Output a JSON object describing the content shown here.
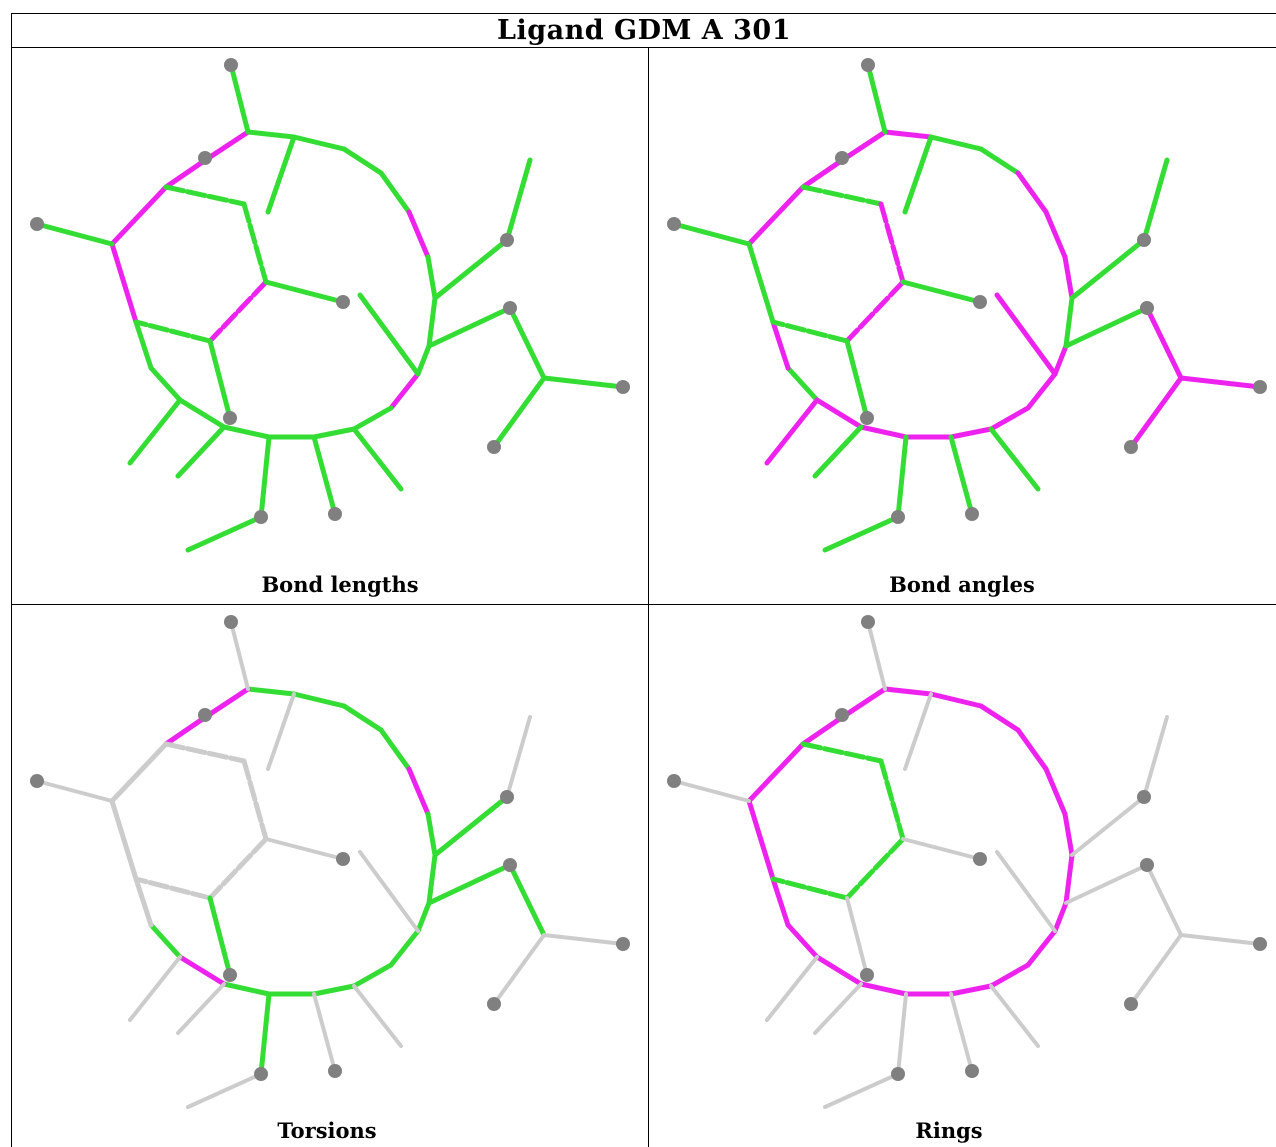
{
  "table": {
    "title": "Ligand GDM A 301",
    "panels": [
      {
        "id": "bond-lengths",
        "caption": "Bond lengths"
      },
      {
        "id": "bond-angles",
        "caption": "Bond angles"
      },
      {
        "id": "torsions",
        "caption": "Torsions"
      },
      {
        "id": "rings",
        "caption": "Rings"
      }
    ]
  },
  "colors": {
    "good": "#33dd33",
    "outlier": "#ee22ee",
    "not_assessed": "#cccccc",
    "atom": "#808080"
  }
}
